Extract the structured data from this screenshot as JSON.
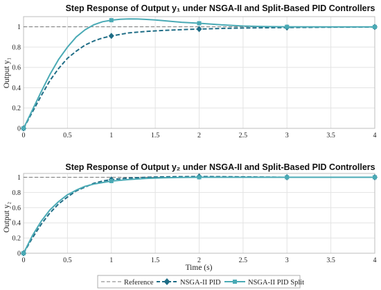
{
  "chart_data": [
    {
      "type": "line",
      "title": "Step Response of Output y₁ under NSGA-II and Split-Based PID Controllers",
      "xlabel": "",
      "ylabel": "Output y₁",
      "xlim": [
        0,
        4
      ],
      "ylim": [
        0,
        1.1
      ],
      "xticks": [
        "0",
        "0.5",
        "1",
        "1.5",
        "2",
        "2.5",
        "3",
        "3.5",
        "4"
      ],
      "yticks": [
        "0",
        "0.2",
        "0.4",
        "0.6",
        "0.8",
        "1"
      ],
      "grid": true,
      "series": [
        {
          "name": "Reference",
          "color": "#777777",
          "style": "dashed",
          "marker": "none",
          "x": [
            0,
            4
          ],
          "y": [
            1,
            1
          ]
        },
        {
          "name": "NSGA-II PID",
          "color": "#1f6d86",
          "style": "dashed",
          "marker": "diamond",
          "x": [
            0,
            0.1,
            0.2,
            0.3,
            0.4,
            0.5,
            0.6,
            0.7,
            0.8,
            0.9,
            1.0,
            1.2,
            1.4,
            1.6,
            1.8,
            2.0,
            2.25,
            2.5,
            2.75,
            3.0,
            3.5,
            4.0
          ],
          "y": [
            0,
            0.16,
            0.32,
            0.47,
            0.59,
            0.69,
            0.76,
            0.82,
            0.86,
            0.89,
            0.91,
            0.94,
            0.955,
            0.965,
            0.972,
            0.978,
            0.984,
            0.988,
            0.991,
            0.993,
            0.996,
            0.998
          ],
          "marker_x": [
            0,
            1,
            2,
            3,
            4
          ],
          "marker_y": [
            0,
            0.91,
            0.978,
            0.993,
            0.998
          ]
        },
        {
          "name": "NSGA-II PID Split",
          "color": "#4aaab5",
          "style": "solid",
          "marker": "square",
          "x": [
            0,
            0.1,
            0.2,
            0.3,
            0.4,
            0.5,
            0.6,
            0.7,
            0.8,
            0.9,
            1.0,
            1.1,
            1.2,
            1.3,
            1.4,
            1.5,
            1.6,
            1.8,
            2.0,
            2.25,
            2.5,
            2.75,
            3.0,
            3.5,
            4.0
          ],
          "y": [
            0,
            0.18,
            0.36,
            0.53,
            0.68,
            0.8,
            0.9,
            0.97,
            1.02,
            1.05,
            1.065,
            1.075,
            1.078,
            1.077,
            1.073,
            1.068,
            1.06,
            1.045,
            1.035,
            1.02,
            1.008,
            1.002,
            1.0,
            0.999,
            0.999
          ],
          "marker_x": [
            0,
            1,
            2,
            3,
            4
          ],
          "marker_y": [
            0,
            1.065,
            1.035,
            1.0,
            0.999
          ]
        }
      ]
    },
    {
      "type": "line",
      "title": "Step Response of Output y₂ under NSGA-II and Split-Based PID Controllers",
      "xlabel": "Time (s)",
      "ylabel": "Output y₂",
      "xlim": [
        0,
        4
      ],
      "ylim": [
        0,
        1.05
      ],
      "xticks": [
        "0",
        "0.5",
        "1",
        "1.5",
        "2",
        "2.5",
        "3",
        "3.5",
        "4"
      ],
      "yticks": [
        "0",
        "0.2",
        "0.4",
        "0.6",
        "0.8",
        "1"
      ],
      "grid": true,
      "series": [
        {
          "name": "Reference",
          "color": "#777777",
          "style": "dashed",
          "marker": "none",
          "x": [
            0,
            4
          ],
          "y": [
            1,
            1
          ]
        },
        {
          "name": "NSGA-II PID",
          "color": "#1f6d86",
          "style": "dashed",
          "marker": "diamond",
          "x": [
            0,
            0.1,
            0.2,
            0.3,
            0.4,
            0.5,
            0.6,
            0.7,
            0.8,
            0.9,
            1.0,
            1.2,
            1.4,
            1.6,
            1.8,
            2.0,
            2.5,
            3.0,
            3.5,
            4.0
          ],
          "y": [
            0,
            0.2,
            0.38,
            0.53,
            0.65,
            0.74,
            0.82,
            0.87,
            0.92,
            0.95,
            0.97,
            0.99,
            1.0,
            1.005,
            1.008,
            1.01,
            1.005,
            1.0,
            1.0,
            1.0
          ],
          "marker_x": [
            0,
            1,
            2,
            3,
            4
          ],
          "marker_y": [
            0,
            0.97,
            1.01,
            1.0,
            1.0
          ]
        },
        {
          "name": "NSGA-II PID Split",
          "color": "#4aaab5",
          "style": "solid",
          "marker": "square",
          "x": [
            0,
            0.1,
            0.2,
            0.3,
            0.4,
            0.5,
            0.6,
            0.7,
            0.8,
            0.9,
            1.0,
            1.2,
            1.4,
            1.6,
            1.8,
            2.0,
            2.5,
            3.0,
            3.5,
            4.0
          ],
          "y": [
            0,
            0.23,
            0.42,
            0.57,
            0.68,
            0.77,
            0.83,
            0.88,
            0.91,
            0.93,
            0.95,
            0.97,
            0.985,
            0.993,
            0.997,
            1.0,
            1.0,
            1.0,
            1.0,
            1.0
          ],
          "marker_x": [
            0,
            1,
            2,
            3,
            4
          ],
          "marker_y": [
            0,
            0.95,
            1.0,
            1.0,
            1.0
          ]
        }
      ]
    }
  ],
  "legend": {
    "placement": "bottom",
    "items": [
      {
        "label": "Reference",
        "color": "#777777",
        "style": "dashed",
        "marker": "none"
      },
      {
        "label": "NSGA-II PID",
        "color": "#1f6d86",
        "style": "dashed",
        "marker": "diamond"
      },
      {
        "label": "NSGA-II PID Split",
        "color": "#4aaab5",
        "style": "solid",
        "marker": "square"
      }
    ]
  }
}
